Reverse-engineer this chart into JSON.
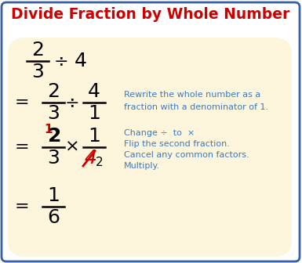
{
  "title": "Divide Fraction by Whole Number",
  "title_color": "#cc0000",
  "title_fontsize": 13.5,
  "bg_outer": "#ffffff",
  "bg_inner": "#fdf5dc",
  "border_color": "#3a5fa0",
  "math_color": "#000000",
  "red_color": "#cc0000",
  "blue_color": "#3a7ac0",
  "annotation_lines": [
    "Rewrite the whole number as a",
    "fraction with a denominator of 1."
  ],
  "annotation2_lines": [
    "Change ÷  to  ×",
    "Flip the second fraction.",
    "Cancel any common factors.",
    "Multiply."
  ]
}
